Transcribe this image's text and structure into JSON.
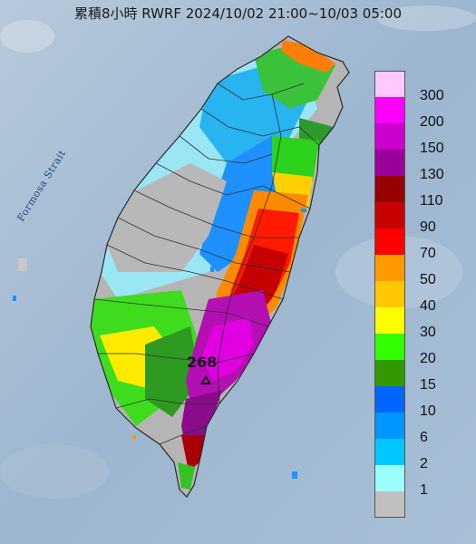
{
  "header": {
    "title": "累積8小時 RWRF 2024/10/02 21:00~10/03 05:00"
  },
  "map": {
    "strait_label": "Formosa Strait",
    "max_value": "268",
    "ocean_color": "#a9c0d6",
    "land_gray": "#b5b5b5",
    "boundary_color": "#3a3a3a"
  },
  "legend": {
    "items": [
      {
        "label": "300",
        "color": "#ffc8ff"
      },
      {
        "label": "200",
        "color": "#ff00ff"
      },
      {
        "label": "150",
        "color": "#cc00cc"
      },
      {
        "label": "130",
        "color": "#990099"
      },
      {
        "label": "110",
        "color": "#960000"
      },
      {
        "label": "90",
        "color": "#c80000"
      },
      {
        "label": "70",
        "color": "#ff0000"
      },
      {
        "label": "50",
        "color": "#ff9900"
      },
      {
        "label": "40",
        "color": "#ffc800"
      },
      {
        "label": "30",
        "color": "#ffff00"
      },
      {
        "label": "20",
        "color": "#33ff00"
      },
      {
        "label": "15",
        "color": "#339900"
      },
      {
        "label": "10",
        "color": "#0064ff"
      },
      {
        "label": "6",
        "color": "#0096ff"
      },
      {
        "label": "2",
        "color": "#00c8ff"
      },
      {
        "label": "1",
        "color": "#9bffff"
      },
      {
        "label": "",
        "color": "#c0c0c0"
      }
    ]
  }
}
